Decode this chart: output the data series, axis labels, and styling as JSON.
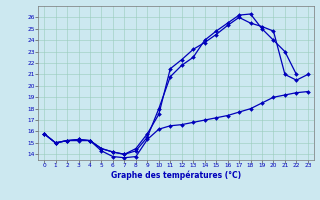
{
  "xlabel": "Graphe des températures (°C)",
  "xlim": [
    -0.5,
    23.5
  ],
  "ylim": [
    13.5,
    27.0
  ],
  "x_ticks": [
    0,
    1,
    2,
    3,
    4,
    5,
    6,
    7,
    8,
    9,
    10,
    11,
    12,
    13,
    14,
    15,
    16,
    17,
    18,
    19,
    20,
    21,
    22,
    23
  ],
  "y_ticks": [
    14,
    15,
    16,
    17,
    18,
    19,
    20,
    21,
    22,
    23,
    24,
    25,
    26
  ],
  "bg_color": "#cce8f0",
  "line_color": "#0000bb",
  "grid_color": "#99ccbb",
  "line1_x": [
    0,
    1,
    2,
    3,
    4,
    5,
    6,
    7,
    8,
    9,
    10,
    11,
    12,
    13,
    14,
    15,
    16,
    17,
    18,
    19,
    20,
    21,
    22,
    23
  ],
  "line1_y": [
    15.8,
    15.0,
    15.2,
    15.2,
    15.2,
    14.3,
    13.8,
    13.7,
    13.8,
    15.3,
    16.2,
    16.5,
    16.6,
    16.8,
    17.0,
    17.2,
    17.4,
    17.7,
    18.0,
    18.5,
    19.0,
    19.2,
    19.4,
    19.5
  ],
  "line2_x": [
    0,
    1,
    2,
    3,
    4,
    5,
    6,
    7,
    8,
    9,
    10,
    11,
    12,
    13,
    14,
    15,
    16,
    17,
    18,
    19,
    20,
    21,
    22
  ],
  "line2_y": [
    15.8,
    15.0,
    15.2,
    15.3,
    15.2,
    14.5,
    14.2,
    14.0,
    14.3,
    15.5,
    18.0,
    20.8,
    21.8,
    22.5,
    24.0,
    24.8,
    25.5,
    26.2,
    26.3,
    25.0,
    24.0,
    23.0,
    21.0
  ],
  "line3_x": [
    0,
    1,
    2,
    3,
    4,
    5,
    6,
    7,
    8,
    9,
    10,
    11,
    12,
    13,
    14,
    15,
    16,
    17,
    18,
    19,
    20,
    21,
    22,
    23
  ],
  "line3_y": [
    15.8,
    15.0,
    15.2,
    15.3,
    15.2,
    14.5,
    14.2,
    14.0,
    14.5,
    15.8,
    17.5,
    21.5,
    22.3,
    23.2,
    23.8,
    24.5,
    25.3,
    26.0,
    25.5,
    25.2,
    24.8,
    21.0,
    20.5,
    21.0
  ]
}
